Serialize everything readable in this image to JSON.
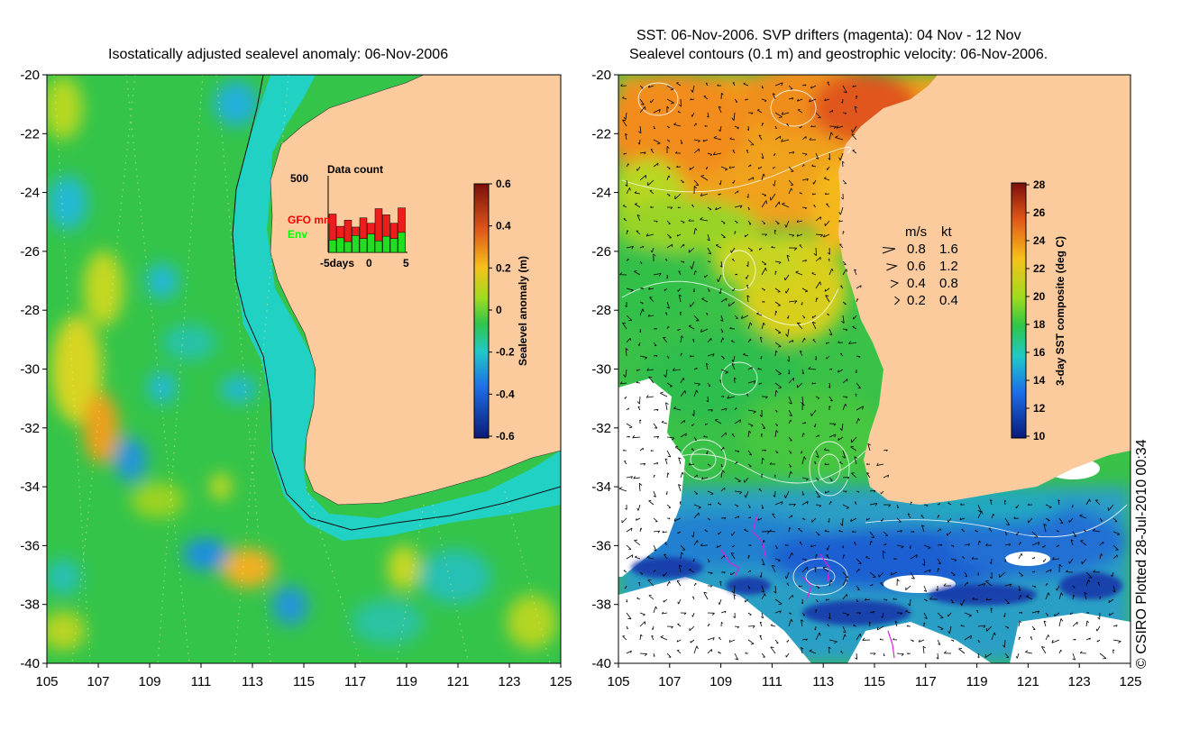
{
  "left_map": {
    "title": "Isostatically adjusted sealevel anomaly: 06-Nov-2006",
    "lon_ticks": [
      "105",
      "107",
      "109",
      "111",
      "113",
      "115",
      "117",
      "119",
      "121",
      "123",
      "125"
    ],
    "lat_ticks": [
      "-20",
      "-22",
      "-24",
      "-26",
      "-28",
      "-30",
      "-32",
      "-34",
      "-36",
      "-38",
      "-40"
    ],
    "colorbar": {
      "label": "Sealevel anomaly (m)",
      "ticks": [
        "0.6",
        "0.4",
        "0.2",
        "0",
        "-0.2",
        "-0.4",
        "-0.6"
      ]
    },
    "inset": {
      "title": "Data count",
      "ymax_label": "500",
      "x_ticks": [
        "-5days",
        "0",
        "5"
      ],
      "legend": [
        {
          "label": "GFO mn",
          "color": "#ff0000"
        },
        {
          "label": "Env",
          "color": "#00ff00"
        }
      ],
      "series": [
        {
          "name": "GFO",
          "color": "#ee1c1c",
          "values": [
            250,
            170,
            210,
            165,
            225,
            190,
            285,
            245,
            190,
            290
          ]
        },
        {
          "name": "Env",
          "color": "#22dd22",
          "values": [
            80,
            95,
            70,
            110,
            90,
            120,
            75,
            105,
            90,
            130
          ]
        }
      ],
      "ymax": 500
    }
  },
  "right_map": {
    "title_line1": "SST: 06-Nov-2006. SVP drifters (magenta): 04 Nov - 12 Nov",
    "title_line2": "Sealevel contours (0.1 m) and geostrophic velocity: 06-Nov-2006.",
    "lon_ticks": [
      "105",
      "107",
      "109",
      "111",
      "113",
      "115",
      "117",
      "119",
      "121",
      "123",
      "125"
    ],
    "lat_ticks": [
      "-20",
      "-22",
      "-24",
      "-26",
      "-28",
      "-30",
      "-32",
      "-34",
      "-36",
      "-38",
      "-40"
    ],
    "colorbar": {
      "label": "3-day SST composite (deg C)",
      "ticks": [
        "28",
        "26",
        "24",
        "22",
        "20",
        "18",
        "16",
        "14",
        "12",
        "10"
      ]
    },
    "velocity_legend": {
      "header_ms": "m/s",
      "header_kt": "kt",
      "rows": [
        {
          "ms": "0.8",
          "kt": "1.6"
        },
        {
          "ms": "0.6",
          "kt": "1.2"
        },
        {
          "ms": "0.4",
          "kt": "0.8"
        },
        {
          "ms": "0.2",
          "kt": "0.4"
        }
      ]
    }
  },
  "credit": "© CSIRO Plotted 28-Jul-2010 00:34",
  "colors": {
    "land": "#fbcb9e",
    "ocean_green": "#34c44a",
    "shelf_cyan": "#21d1c4",
    "sst_orange": "#f39a1a",
    "sst_blue": "#1a4fd8",
    "drifter_magenta": "#e020e0"
  }
}
